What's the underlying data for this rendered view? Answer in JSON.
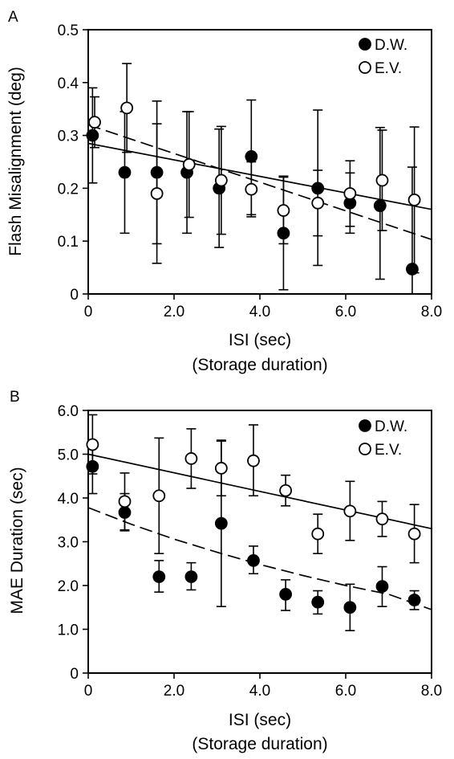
{
  "chart_data": [
    {
      "panel_label": "A",
      "type": "scatter",
      "xlabel": "ISI (sec)",
      "xlabel_sub": "(Storage duration)",
      "ylabel": "Flash Misalignment (deg)",
      "xlim": [
        0,
        8.0
      ],
      "ylim": [
        0,
        0.5
      ],
      "x_ticks": [
        "0",
        "2.0",
        "4.0",
        "6.0",
        "8.0"
      ],
      "x_tick_values": [
        0,
        2,
        4,
        6,
        8
      ],
      "y_ticks": [
        "0",
        "0.1",
        "0.2",
        "0.3",
        "0.4",
        "0.5"
      ],
      "y_tick_values": [
        0,
        0.1,
        0.2,
        0.3,
        0.4,
        0.5
      ],
      "legend_position": "top-right",
      "grid": false,
      "series": [
        {
          "name": "D.W.",
          "marker": "filled-circle",
          "points": [
            {
              "x": 0.1,
              "y": 0.3,
              "lo": 0.21,
              "hi": 0.39
            },
            {
              "x": 0.85,
              "y": 0.23,
              "lo": 0.115,
              "hi": 0.345
            },
            {
              "x": 1.6,
              "y": 0.23,
              "lo": 0.095,
              "hi": 0.365
            },
            {
              "x": 2.3,
              "y": 0.23,
              "lo": 0.115,
              "hi": 0.345
            },
            {
              "x": 3.05,
              "y": 0.2,
              "lo": 0.088,
              "hi": 0.312
            },
            {
              "x": 3.8,
              "y": 0.26,
              "lo": 0.15,
              "hi": 0.367
            },
            {
              "x": 4.55,
              "y": 0.115,
              "lo": 0.008,
              "hi": 0.223
            },
            {
              "x": 5.35,
              "y": 0.2,
              "lo": 0.054,
              "hi": 0.348
            },
            {
              "x": 6.1,
              "y": 0.172,
              "lo": 0.115,
              "hi": 0.229
            },
            {
              "x": 6.8,
              "y": 0.167,
              "lo": 0.028,
              "hi": 0.315
            },
            {
              "x": 7.55,
              "y": 0.047,
              "lo": 0.0,
              "hi": 0.24
            }
          ],
          "fit": {
            "style": "solid",
            "x": [
              0,
              8.0
            ],
            "y": [
              0.285,
              0.16
            ]
          }
        },
        {
          "name": "E.V.",
          "marker": "open-circle",
          "points": [
            {
              "x": 0.15,
              "y": 0.325,
              "lo": 0.277,
              "hi": 0.373
            },
            {
              "x": 0.9,
              "y": 0.352,
              "lo": 0.268,
              "hi": 0.436
            },
            {
              "x": 1.6,
              "y": 0.19,
              "lo": 0.058,
              "hi": 0.322
            },
            {
              "x": 2.35,
              "y": 0.245,
              "lo": 0.145,
              "hi": 0.345
            },
            {
              "x": 3.1,
              "y": 0.215,
              "lo": 0.113,
              "hi": 0.317
            },
            {
              "x": 3.8,
              "y": 0.198,
              "lo": 0.146,
              "hi": 0.25
            },
            {
              "x": 4.55,
              "y": 0.158,
              "lo": 0.095,
              "hi": 0.221
            },
            {
              "x": 5.35,
              "y": 0.172,
              "lo": 0.11,
              "hi": 0.234
            },
            {
              "x": 6.1,
              "y": 0.19,
              "lo": 0.128,
              "hi": 0.252
            },
            {
              "x": 6.85,
              "y": 0.215,
              "lo": 0.12,
              "hi": 0.31
            },
            {
              "x": 7.6,
              "y": 0.178,
              "lo": 0.04,
              "hi": 0.316
            }
          ],
          "fit": {
            "style": "dashed",
            "x": [
              0,
              8.0
            ],
            "y": [
              0.32,
              0.103
            ]
          }
        }
      ]
    },
    {
      "panel_label": "B",
      "type": "scatter",
      "xlabel": "ISI (sec)",
      "xlabel_sub": "(Storage duration)",
      "ylabel": "MAE Duration (sec)",
      "xlim": [
        0,
        8.0
      ],
      "ylim": [
        0,
        6.0
      ],
      "x_ticks": [
        "0",
        "2.0",
        "4.0",
        "6.0",
        "8.0"
      ],
      "x_tick_values": [
        0,
        2,
        4,
        6,
        8
      ],
      "y_ticks": [
        "0",
        "1.0",
        "2.0",
        "3.0",
        "4.0",
        "5.0",
        "6.0"
      ],
      "y_tick_values": [
        0,
        1,
        2,
        3,
        4,
        5,
        6
      ],
      "legend_position": "top-right",
      "grid": false,
      "series": [
        {
          "name": "D.W.",
          "marker": "filled-circle",
          "points": [
            {
              "x": 0.1,
              "y": 4.72,
              "lo": 4.1,
              "hi": 5.3
            },
            {
              "x": 0.85,
              "y": 3.67,
              "lo": 3.25,
              "hi": 4.1
            },
            {
              "x": 1.65,
              "y": 2.2,
              "lo": 1.85,
              "hi": 2.57
            },
            {
              "x": 2.4,
              "y": 2.2,
              "lo": 1.9,
              "hi": 2.52
            },
            {
              "x": 3.1,
              "y": 3.42,
              "lo": 1.52,
              "hi": 5.3
            },
            {
              "x": 3.85,
              "y": 2.57,
              "lo": 2.27,
              "hi": 2.9
            },
            {
              "x": 4.6,
              "y": 1.8,
              "lo": 1.43,
              "hi": 2.13
            },
            {
              "x": 5.35,
              "y": 1.62,
              "lo": 1.35,
              "hi": 1.88
            },
            {
              "x": 6.1,
              "y": 1.5,
              "lo": 0.97,
              "hi": 2.03
            },
            {
              "x": 6.85,
              "y": 1.98,
              "lo": 1.52,
              "hi": 2.43
            },
            {
              "x": 7.6,
              "y": 1.67,
              "lo": 1.45,
              "hi": 1.88
            }
          ],
          "fit": {
            "style": "dashed",
            "x": [
              0,
              1,
              2,
              3,
              4,
              5,
              6,
              7,
              8
            ],
            "y": [
              3.78,
              3.4,
              3.06,
              2.76,
              2.48,
              2.23,
              2.0,
              1.8,
              1.45
            ]
          }
        },
        {
          "name": "E.V.",
          "marker": "open-circle",
          "points": [
            {
              "x": 0.1,
              "y": 5.22,
              "lo": 4.55,
              "hi": 5.9
            },
            {
              "x": 0.85,
              "y": 3.92,
              "lo": 3.27,
              "hi": 4.57
            },
            {
              "x": 1.65,
              "y": 4.05,
              "lo": 2.73,
              "hi": 5.37
            },
            {
              "x": 2.4,
              "y": 4.9,
              "lo": 4.22,
              "hi": 5.58
            },
            {
              "x": 3.1,
              "y": 4.68,
              "lo": 4.05,
              "hi": 5.32
            },
            {
              "x": 3.85,
              "y": 4.85,
              "lo": 4.05,
              "hi": 5.67
            },
            {
              "x": 4.6,
              "y": 4.17,
              "lo": 3.82,
              "hi": 4.52
            },
            {
              "x": 5.35,
              "y": 3.18,
              "lo": 2.73,
              "hi": 3.63
            },
            {
              "x": 6.1,
              "y": 3.7,
              "lo": 3.03,
              "hi": 4.38
            },
            {
              "x": 6.85,
              "y": 3.52,
              "lo": 3.12,
              "hi": 3.92
            },
            {
              "x": 7.6,
              "y": 3.18,
              "lo": 2.52,
              "hi": 3.85
            }
          ],
          "fit": {
            "style": "solid",
            "x": [
              0,
              8.0
            ],
            "y": [
              5.0,
              3.3
            ]
          }
        }
      ]
    }
  ]
}
